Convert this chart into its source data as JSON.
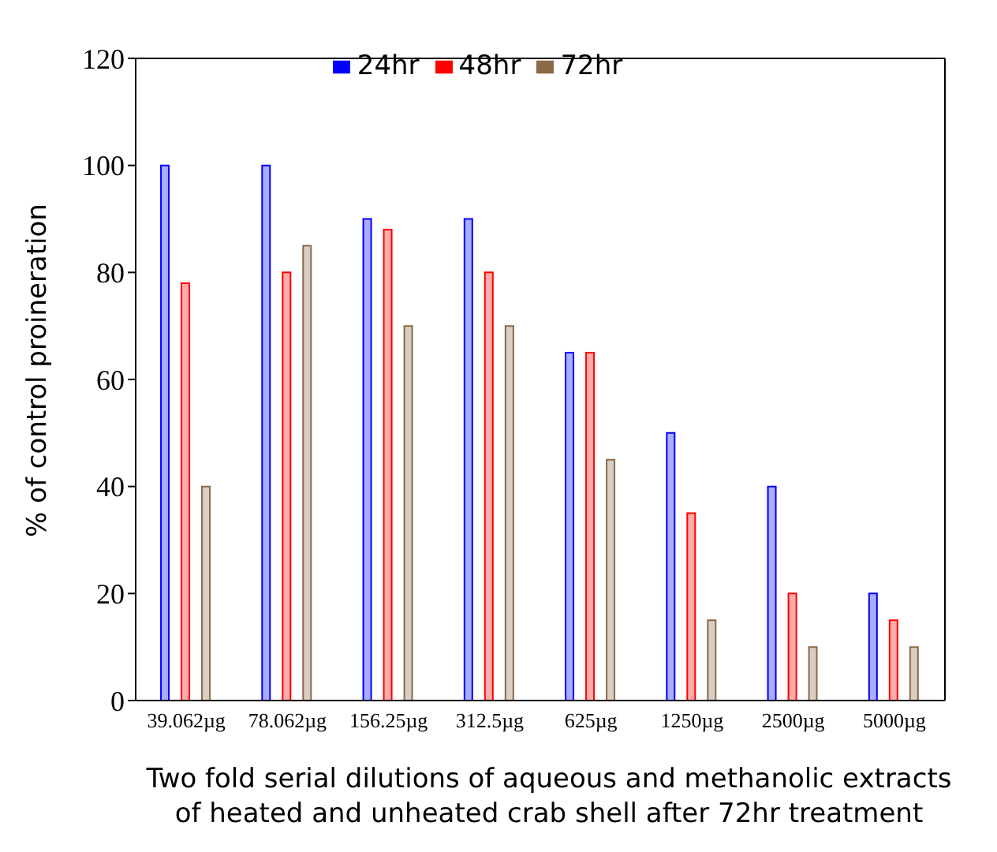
{
  "chart_data": {
    "type": "bar",
    "xlabel": "Two fold serial dilutions of aqueous and methanolic extracts\nof heated and unheated crab shell after 72hr treatment",
    "ylabel": "% of control proineration",
    "categories": [
      "39.062µg",
      "78.062µg",
      "156.25µg",
      "312.5µg",
      "625µg",
      "1250µg",
      "2500µg",
      "5000µg"
    ],
    "series": [
      {
        "name": "24hr",
        "color": "#0000ff",
        "values": [
          100,
          100,
          90,
          90,
          65,
          50,
          40,
          20
        ]
      },
      {
        "name": "48hr",
        "color": "#ff0000",
        "values": [
          78,
          80,
          88,
          80,
          65,
          35,
          20,
          15
        ]
      },
      {
        "name": "72hr",
        "color": "#8b6a48",
        "values": [
          40,
          85,
          70,
          70,
          45,
          15,
          10,
          10
        ]
      }
    ],
    "ylim": [
      0,
      120
    ],
    "yticks": [
      0,
      20,
      40,
      60,
      80,
      100,
      120
    ],
    "grid": false,
    "legend": "top"
  }
}
